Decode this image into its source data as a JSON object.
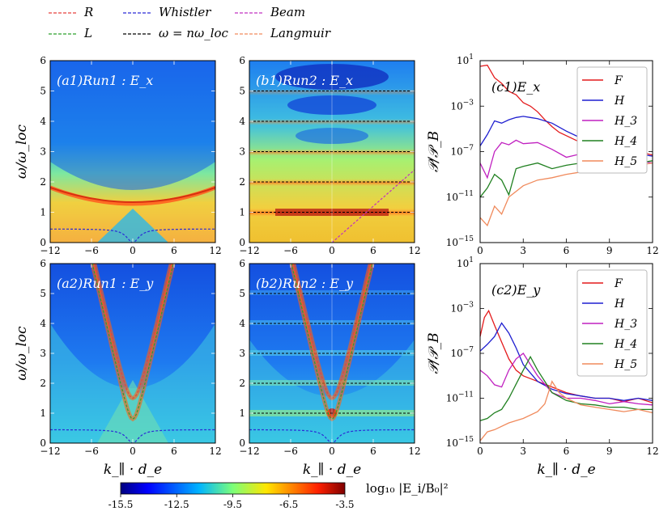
{
  "legend": [
    {
      "label": "R",
      "color": "#e8413c",
      "dash": "4,2"
    },
    {
      "label": "L",
      "color": "#2ca02c",
      "dash": "4,2"
    },
    {
      "label": "Whistler",
      "color": "#2b2bd6",
      "dash": "4,2"
    },
    {
      "label": "ω = nω_loc",
      "color": "#000000",
      "dash": "4,2"
    },
    {
      "label": "Beam",
      "color": "#c030c0",
      "dash": "4,2"
    },
    {
      "label": "Langmuir",
      "color": "#f08a5c",
      "dash": "4,2"
    }
  ],
  "colorbar": {
    "label": "log₁₀ |E_i/B₀|²",
    "ticks": [
      "-15.5",
      "-12.5",
      "-9.5",
      "-6.5",
      "-3.5"
    ],
    "range": [
      -15.5,
      -3.5
    ]
  },
  "chart_data": [
    {
      "type": "heatmap",
      "panel": "a1",
      "title": "(a1)Run1 : E_x",
      "xlabel": "",
      "ylabel": "ω/ω_loc",
      "xlim": [
        -12,
        12
      ],
      "ylim": [
        0,
        6
      ],
      "xticks": [
        "-12",
        "-6",
        "0",
        "6",
        "12"
      ],
      "yticks": [
        "0",
        "1",
        "2",
        "3",
        "4",
        "5",
        "6"
      ],
      "overlays": [
        "R",
        "L",
        "Whistler"
      ]
    },
    {
      "type": "heatmap",
      "panel": "b1",
      "title": "(b1)Run2 : E_x",
      "xlabel": "",
      "ylabel": "",
      "xlim": [
        -12,
        12
      ],
      "ylim": [
        0,
        6
      ],
      "xticks": [
        "-12",
        "-6",
        "0",
        "6",
        "12"
      ],
      "yticks": [
        "0",
        "1",
        "2",
        "3",
        "4",
        "5",
        "6"
      ],
      "harmonics": [
        1,
        2,
        3,
        4,
        5
      ],
      "overlays": [
        "Beam"
      ]
    },
    {
      "type": "heatmap",
      "panel": "a2",
      "title": "(a2)Run1 : E_y",
      "xlabel": "k_∥ · d_e",
      "ylabel": "ω/ω_loc",
      "xlim": [
        -12,
        12
      ],
      "ylim": [
        0,
        6
      ],
      "xticks": [
        "-12",
        "-6",
        "0",
        "6",
        "12"
      ],
      "yticks": [
        "0",
        "1",
        "2",
        "3",
        "4",
        "5",
        "6"
      ],
      "overlays": [
        "R",
        "L",
        "Whistler"
      ]
    },
    {
      "type": "heatmap",
      "panel": "b2",
      "title": "(b2)Run2 : E_y",
      "xlabel": "k_∥ · d_e",
      "ylabel": "",
      "xlim": [
        -12,
        12
      ],
      "ylim": [
        0,
        6
      ],
      "xticks": [
        "-12",
        "-6",
        "0",
        "6",
        "12"
      ],
      "yticks": [
        "0",
        "1",
        "2",
        "3",
        "4",
        "5",
        "6"
      ],
      "harmonics": [
        1,
        2,
        3,
        4,
        5
      ],
      "overlays": [
        "R",
        "L",
        "Whistler"
      ]
    },
    {
      "type": "line",
      "panel": "c1",
      "title": "(c1)E_x",
      "xlabel": "",
      "ylabel": "𝒫/𝒫_B",
      "yscale": "log",
      "xlim": [
        0,
        12
      ],
      "ylim_exp": [
        -15,
        1
      ],
      "xticks": [
        "0",
        "3",
        "6",
        "9",
        "12"
      ],
      "yticks": [
        {
          "e": "1"
        },
        {
          "e": "-3"
        },
        {
          "e": "-7"
        },
        {
          "e": "-11"
        },
        {
          "e": "-15"
        }
      ],
      "series": [
        {
          "name": "F",
          "color": "#e41a1c",
          "x": [
            0,
            0.5,
            1,
            1.5,
            2,
            2.5,
            3,
            3.5,
            4,
            4.5,
            5,
            5.5,
            6,
            7,
            8,
            9,
            10,
            11,
            12
          ],
          "y": [
            0.5,
            0.6,
            -0.5,
            -1.0,
            -1.7,
            -2.0,
            -2.7,
            -3.0,
            -3.5,
            -4.2,
            -4.8,
            -5.3,
            -5.6,
            -6.2,
            -6.8,
            -7.1,
            -7.3,
            -7.0,
            -7.3
          ]
        },
        {
          "name": "H",
          "color": "#1f1fd0",
          "x": [
            0,
            0.5,
            1,
            1.5,
            2,
            2.5,
            3,
            3.5,
            4,
            5,
            6,
            7,
            8,
            9,
            10,
            11,
            12
          ],
          "y": [
            -6.5,
            -5.5,
            -4.3,
            -4.5,
            -4.2,
            -4.0,
            -3.9,
            -4.0,
            -4.1,
            -4.5,
            -5.2,
            -5.8,
            -6.4,
            -6.8,
            -7.0,
            -7.2,
            -7.4
          ]
        },
        {
          "name": "H_3",
          "color": "#c020c0",
          "x": [
            0,
            0.5,
            1,
            1.5,
            2,
            2.5,
            3,
            4,
            5,
            6,
            7,
            8,
            9,
            10,
            11,
            12
          ],
          "y": [
            -8.0,
            -9.3,
            -7.0,
            -6.2,
            -6.4,
            -6.0,
            -6.3,
            -6.2,
            -6.8,
            -7.5,
            -7.2,
            -7.8,
            -7.6,
            -8.0,
            -7.8,
            -8.0
          ]
        },
        {
          "name": "H_4",
          "color": "#208020",
          "x": [
            0,
            0.5,
            1,
            1.5,
            2,
            2.5,
            3,
            4,
            5,
            6,
            7,
            8,
            9,
            10,
            11,
            12
          ],
          "y": [
            -11.0,
            -10.2,
            -9.0,
            -9.5,
            -10.8,
            -8.5,
            -8.3,
            -8.0,
            -8.5,
            -8.2,
            -8.0,
            -7.8,
            -8.2,
            -7.6,
            -8.0,
            -7.8
          ]
        },
        {
          "name": "H_5",
          "color": "#f08a5c",
          "x": [
            0,
            0.5,
            1,
            1.5,
            2,
            2.5,
            3,
            4,
            5,
            6,
            7,
            8,
            9,
            10,
            11,
            12
          ],
          "y": [
            -12.8,
            -13.5,
            -11.8,
            -12.5,
            -11.0,
            -10.5,
            -10.0,
            -9.5,
            -9.3,
            -9.0,
            -8.8,
            -8.6,
            -8.4,
            -8.3,
            -8.2,
            -8.0
          ]
        }
      ]
    },
    {
      "type": "line",
      "panel": "c2",
      "title": "(c2)E_y",
      "xlabel": "k_∥ · d_e",
      "ylabel": "𝒫/𝒫_B",
      "yscale": "log",
      "xlim": [
        0,
        12
      ],
      "ylim_exp": [
        -15,
        1
      ],
      "xticks": [
        "0",
        "3",
        "6",
        "9",
        "12"
      ],
      "yticks": [
        {
          "e": "1"
        },
        {
          "e": "-3"
        },
        {
          "e": "-7"
        },
        {
          "e": "-11"
        },
        {
          "e": "-15"
        }
      ],
      "series": [
        {
          "name": "F",
          "color": "#e41a1c",
          "x": [
            0,
            0.3,
            0.6,
            1,
            1.5,
            2,
            2.5,
            3,
            4,
            5,
            6,
            7,
            8,
            9,
            10,
            11,
            12
          ],
          "y": [
            -5.5,
            -3.8,
            -3.2,
            -4.5,
            -6.0,
            -7.5,
            -8.5,
            -9.0,
            -9.5,
            -10.0,
            -10.5,
            -10.8,
            -11.0,
            -11.0,
            -11.3,
            -11.0,
            -11.4
          ]
        },
        {
          "name": "H",
          "color": "#1f1fd0",
          "x": [
            0,
            0.5,
            1,
            1.5,
            2,
            2.5,
            3,
            4,
            5,
            6,
            7,
            8,
            9,
            10,
            11,
            12
          ],
          "y": [
            -6.8,
            -6.2,
            -5.5,
            -4.3,
            -5.2,
            -6.5,
            -8.0,
            -9.5,
            -10.2,
            -10.6,
            -10.8,
            -11.0,
            -11.0,
            -11.2,
            -11.0,
            -11.2
          ]
        },
        {
          "name": "H_3",
          "color": "#c020c0",
          "x": [
            0,
            0.5,
            1,
            1.5,
            2,
            2.5,
            3,
            4,
            5,
            6,
            7,
            8,
            9,
            10,
            11,
            12
          ],
          "y": [
            -8.5,
            -9.0,
            -9.8,
            -10.0,
            -8.5,
            -7.5,
            -7.0,
            -9.0,
            -10.5,
            -11.0,
            -11.0,
            -11.2,
            -11.5,
            -11.3,
            -11.5,
            -11.6
          ]
        },
        {
          "name": "H_4",
          "color": "#208020",
          "x": [
            0,
            0.5,
            1,
            1.5,
            2,
            3,
            3.5,
            4,
            5,
            6,
            7,
            8,
            9,
            10,
            11,
            12
          ],
          "y": [
            -13.0,
            -12.8,
            -12.3,
            -12.0,
            -11.0,
            -8.5,
            -7.3,
            -8.5,
            -10.5,
            -11.2,
            -11.5,
            -11.6,
            -11.8,
            -11.8,
            -12.0,
            -12.0
          ]
        },
        {
          "name": "H_5",
          "color": "#f08a5c",
          "x": [
            0,
            0.5,
            1,
            2,
            3,
            4,
            4.5,
            5,
            5.5,
            6,
            7,
            8,
            9,
            10,
            11,
            12
          ],
          "y": [
            -14.8,
            -14.0,
            -13.8,
            -13.2,
            -12.8,
            -12.2,
            -11.5,
            -9.5,
            -10.5,
            -11.0,
            -11.6,
            -11.8,
            -12.0,
            -12.2,
            -12.0,
            -12.3
          ]
        }
      ]
    }
  ]
}
